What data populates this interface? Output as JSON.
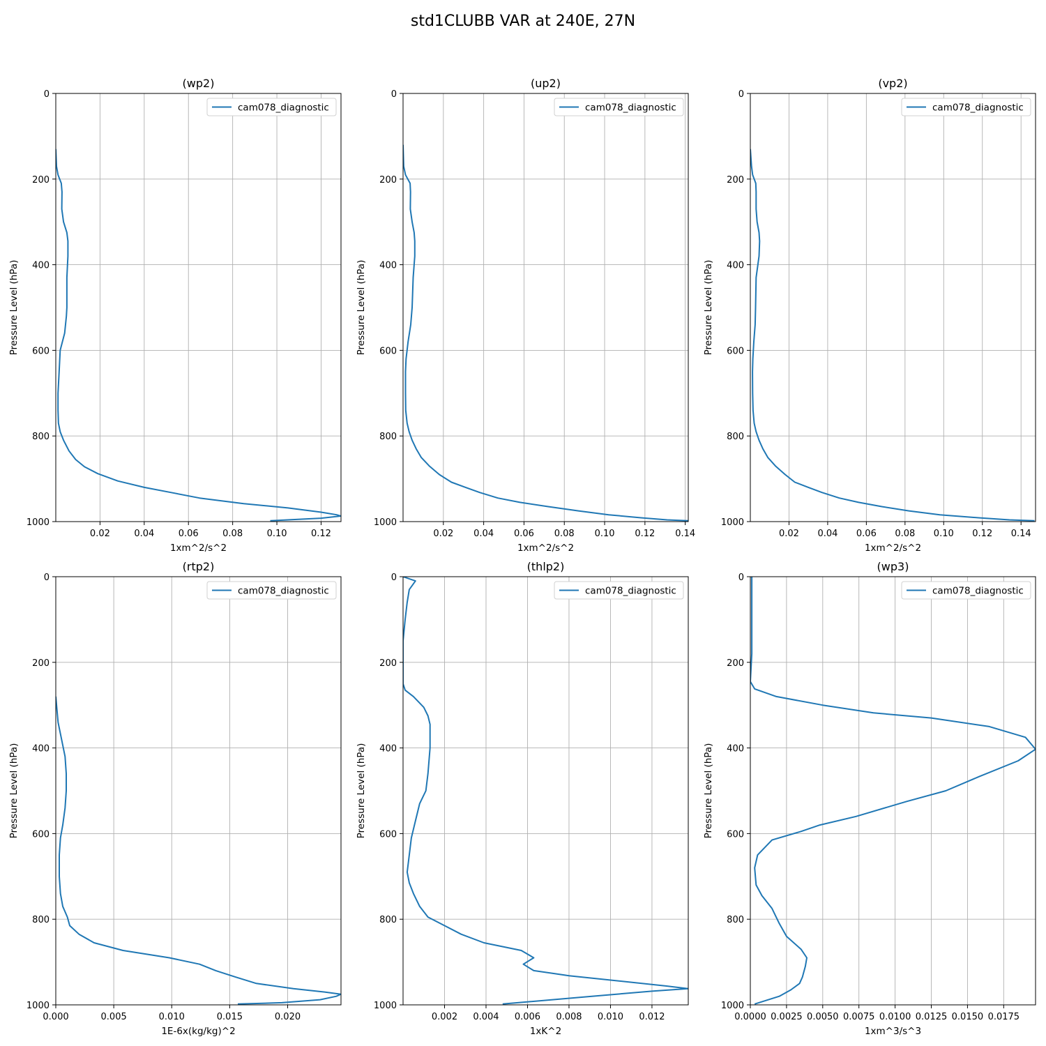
{
  "figure": {
    "title": "std1CLUBB VAR at 240E, 27N"
  },
  "chart_data": [
    {
      "type": "line",
      "title": "(wp2)",
      "xlabel": "1xm^2/s^2",
      "ylabel": "Pressure Level (hPa)",
      "xlim": [
        0.0,
        0.129
      ],
      "ylim": [
        1000,
        0
      ],
      "xticks": [
        0.02,
        0.04,
        0.06,
        0.08,
        0.1,
        0.12
      ],
      "xtick_labels": [
        "0.02",
        "0.04",
        "0.06",
        "0.08",
        "0.10",
        "0.12"
      ],
      "yticks": [
        0,
        200,
        400,
        600,
        800,
        1000
      ],
      "ytick_labels": [
        "0",
        "200",
        "400",
        "600",
        "800",
        "1000"
      ],
      "grid": true,
      "legend_position": "upper right",
      "series": [
        {
          "name": "cam078_diagnostic",
          "color": "#1f77b4",
          "x": [
            0.0,
            0.0003,
            0.001,
            0.0025,
            0.0028,
            0.0027,
            0.0035,
            0.005,
            0.0055,
            0.0055,
            0.005,
            0.005,
            0.0048,
            0.004,
            0.002,
            0.0015,
            0.001,
            0.001,
            0.0012,
            0.002,
            0.0035,
            0.006,
            0.009,
            0.013,
            0.019,
            0.028,
            0.04,
            0.052,
            0.065,
            0.085,
            0.105,
            0.12,
            0.127,
            0.129,
            0.12,
            0.097
          ],
          "y": [
            130,
            170,
            190,
            210,
            230,
            270,
            300,
            325,
            345,
            380,
            430,
            500,
            520,
            560,
            600,
            650,
            700,
            740,
            770,
            790,
            810,
            835,
            855,
            872,
            888,
            905,
            920,
            932,
            945,
            958,
            968,
            978,
            984,
            987,
            992,
            998
          ]
        }
      ]
    },
    {
      "type": "line",
      "title": "(up2)",
      "xlabel": "1xm^2/s^2",
      "ylabel": "Pressure Level (hPa)",
      "xlim": [
        0.0,
        0.1415
      ],
      "ylim": [
        1000,
        0
      ],
      "xticks": [
        0.02,
        0.04,
        0.06,
        0.08,
        0.1,
        0.12,
        0.14
      ],
      "xtick_labels": [
        "0.02",
        "0.04",
        "0.06",
        "0.08",
        "0.10",
        "0.12",
        "0.14"
      ],
      "yticks": [
        0,
        200,
        400,
        600,
        800,
        1000
      ],
      "ytick_labels": [
        "0",
        "200",
        "400",
        "600",
        "800",
        "1000"
      ],
      "grid": true,
      "legend_position": "upper right",
      "series": [
        {
          "name": "cam078_diagnostic",
          "color": "#1f77b4",
          "x": [
            0.0,
            0.0003,
            0.0012,
            0.0035,
            0.0037,
            0.0036,
            0.0045,
            0.0055,
            0.0058,
            0.0058,
            0.005,
            0.0045,
            0.0038,
            0.0025,
            0.0015,
            0.0012,
            0.0012,
            0.0013,
            0.002,
            0.003,
            0.0045,
            0.0065,
            0.009,
            0.013,
            0.018,
            0.024,
            0.031,
            0.038,
            0.047,
            0.058,
            0.072,
            0.087,
            0.102,
            0.118,
            0.131,
            0.1415
          ],
          "y": [
            120,
            170,
            190,
            210,
            230,
            270,
            300,
            325,
            345,
            380,
            430,
            500,
            540,
            580,
            620,
            650,
            700,
            740,
            770,
            790,
            810,
            830,
            850,
            870,
            890,
            908,
            920,
            932,
            945,
            955,
            965,
            975,
            984,
            991,
            996,
            998
          ]
        }
      ]
    },
    {
      "type": "line",
      "title": "(vp2)",
      "xlabel": "1xm^2/s^2",
      "ylabel": "Pressure Level (hPa)",
      "xlim": [
        0.0,
        0.1475
      ],
      "ylim": [
        1000,
        0
      ],
      "xticks": [
        0.02,
        0.04,
        0.06,
        0.08,
        0.1,
        0.12,
        0.14
      ],
      "xtick_labels": [
        "0.02",
        "0.04",
        "0.06",
        "0.08",
        "0.10",
        "0.12",
        "0.14"
      ],
      "yticks": [
        0,
        200,
        400,
        600,
        800,
        1000
      ],
      "ytick_labels": [
        "0",
        "200",
        "400",
        "600",
        "800",
        "1000"
      ],
      "grid": true,
      "legend_position": "upper right",
      "series": [
        {
          "name": "cam078_diagnostic",
          "color": "#1f77b4",
          "x": [
            0.0,
            0.0006,
            0.0012,
            0.0028,
            0.003,
            0.003,
            0.0035,
            0.0045,
            0.0048,
            0.0045,
            0.003,
            0.0027,
            0.0025,
            0.0018,
            0.0013,
            0.0011,
            0.0012,
            0.0014,
            0.002,
            0.003,
            0.0045,
            0.0065,
            0.009,
            0.013,
            0.018,
            0.023,
            0.03,
            0.037,
            0.046,
            0.056,
            0.068,
            0.082,
            0.098,
            0.118,
            0.134,
            0.147
          ],
          "y": [
            130,
            170,
            190,
            210,
            230,
            270,
            300,
            325,
            345,
            380,
            430,
            500,
            540,
            580,
            620,
            650,
            700,
            740,
            770,
            790,
            810,
            830,
            850,
            870,
            890,
            908,
            920,
            932,
            945,
            955,
            965,
            975,
            984,
            991,
            996,
            998
          ]
        }
      ]
    },
    {
      "type": "line",
      "title": "(rtp2)",
      "xlabel": "1E-6x(kg/kg)^2",
      "ylabel": "Pressure Level (hPa)",
      "xlim": [
        0.0,
        0.0246
      ],
      "ylim": [
        1000,
        0
      ],
      "xticks": [
        0.0,
        0.005,
        0.01,
        0.015,
        0.02
      ],
      "xtick_labels": [
        "0.000",
        "0.005",
        "0.010",
        "0.015",
        "0.020"
      ],
      "yticks": [
        0,
        200,
        400,
        600,
        800,
        1000
      ],
      "ytick_labels": [
        "0",
        "200",
        "400",
        "600",
        "800",
        "1000"
      ],
      "grid": true,
      "legend_position": "upper right",
      "series": [
        {
          "name": "cam078_diagnostic",
          "color": "#1f77b4",
          "x": [
            0.0,
            0.0002,
            0.0005,
            0.0008,
            0.0009,
            0.0009,
            0.0008,
            0.0006,
            0.0004,
            0.0003,
            0.0003,
            0.0004,
            0.0006,
            0.001,
            0.0012,
            0.002,
            0.0033,
            0.0058,
            0.0098,
            0.0124,
            0.0138,
            0.0155,
            0.0173,
            0.0205,
            0.0232,
            0.0246,
            0.0242,
            0.0228,
            0.0195,
            0.0157
          ],
          "y": [
            280,
            340,
            380,
            420,
            460,
            500,
            540,
            580,
            610,
            650,
            700,
            740,
            770,
            795,
            815,
            835,
            855,
            873,
            890,
            905,
            920,
            935,
            950,
            962,
            970,
            975,
            980,
            988,
            995,
            998
          ]
        }
      ]
    },
    {
      "type": "line",
      "title": "(thlp2)",
      "xlabel": "1xK^2",
      "ylabel": "Pressure Level (hPa)",
      "xlim": [
        0.0,
        0.01375
      ],
      "ylim": [
        1000,
        0
      ],
      "xticks": [
        0.002,
        0.004,
        0.006,
        0.008,
        0.01,
        0.012
      ],
      "xtick_labels": [
        "0.002",
        "0.004",
        "0.006",
        "0.008",
        "0.010",
        "0.012"
      ],
      "yticks": [
        0,
        200,
        400,
        600,
        800,
        1000
      ],
      "ytick_labels": [
        "0",
        "200",
        "400",
        "600",
        "800",
        "1000"
      ],
      "grid": true,
      "legend_position": "upper right",
      "series": [
        {
          "name": "cam078_diagnostic",
          "color": "#1f77b4",
          "x": [
            0.0,
            0.0006,
            0.0003,
            0.0002,
            0.0001,
            0.0,
            0.0,
            0.0,
            0.0001,
            0.0005,
            0.001,
            0.0012,
            0.0013,
            0.0013,
            0.0012,
            0.0011,
            0.0008,
            0.0006,
            0.0004,
            0.0003,
            0.0002,
            0.0003,
            0.0005,
            0.0008,
            0.0012,
            0.002,
            0.0028,
            0.0039,
            0.0057,
            0.0063,
            0.0058,
            0.0063,
            0.008,
            0.0127,
            0.01375,
            0.012,
            0.0091,
            0.0048
          ],
          "y": [
            0,
            10,
            30,
            60,
            100,
            150,
            200,
            250,
            265,
            280,
            305,
            325,
            345,
            400,
            460,
            500,
            530,
            570,
            610,
            650,
            690,
            715,
            740,
            770,
            795,
            815,
            835,
            855,
            873,
            890,
            905,
            920,
            932,
            956,
            962,
            968,
            980,
            998
          ]
        }
      ]
    },
    {
      "type": "line",
      "title": "(wp3)",
      "xlabel": "1xm^3/s^3",
      "ylabel": "Pressure Level (hPa)",
      "xlim": [
        0.0,
        0.0197
      ],
      "ylim": [
        1000,
        0
      ],
      "xticks": [
        0.0,
        0.0025,
        0.005,
        0.0075,
        0.01,
        0.0125,
        0.015,
        0.0175
      ],
      "xtick_labels": [
        "0.0000",
        "0.0025",
        "0.0050",
        "0.0075",
        "0.0100",
        "0.0125",
        "0.0150",
        "0.0175"
      ],
      "yticks": [
        0,
        200,
        400,
        600,
        800,
        1000
      ],
      "ytick_labels": [
        "0",
        "200",
        "400",
        "600",
        "800",
        "1000"
      ],
      "grid": true,
      "legend_position": "upper right",
      "series": [
        {
          "name": "cam078_diagnostic",
          "color": "#1f77b4",
          "x": [
            0.0001,
            0.0001,
            0.0001,
            0.0001,
            0.0,
            0.0003,
            0.0018,
            0.005,
            0.0085,
            0.0125,
            0.0165,
            0.019,
            0.0197,
            0.0185,
            0.0158,
            0.0135,
            0.0108,
            0.0073,
            0.0048,
            0.0035,
            0.0015,
            0.0005,
            0.0003,
            0.0004,
            0.0008,
            0.0015,
            0.002,
            0.0025,
            0.0035,
            0.0039,
            0.0038,
            0.0036,
            0.0034,
            0.0028,
            0.002,
            0.0003
          ],
          "y": [
            0,
            50,
            100,
            180,
            245,
            262,
            280,
            300,
            318,
            330,
            350,
            375,
            403,
            430,
            467,
            500,
            525,
            560,
            580,
            595,
            615,
            650,
            680,
            720,
            745,
            775,
            810,
            840,
            870,
            890,
            910,
            935,
            950,
            965,
            980,
            998
          ]
        }
      ]
    }
  ]
}
